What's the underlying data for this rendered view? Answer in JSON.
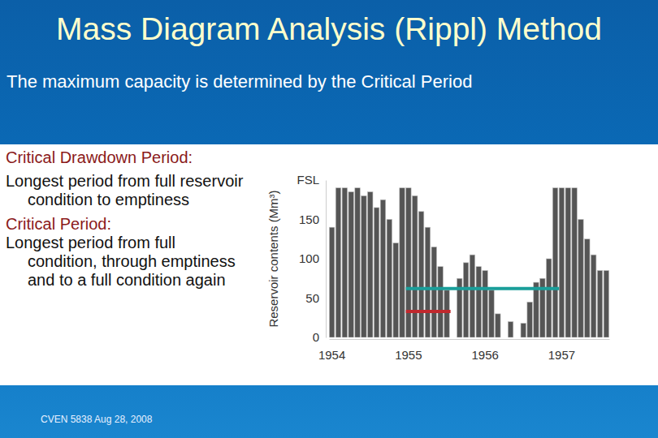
{
  "slide": {
    "title": "Mass Diagram Analysis (Rippl) Method",
    "subtitle": "The maximum capacity is determined by the Critical Period",
    "definitions": [
      {
        "term": "Critical Drawdown Period:",
        "text": "Longest period from full reservoir condition to emptiness"
      },
      {
        "term": "Critical Period:",
        "text": "Longest period from full condition, through emptiness and to a full condition again"
      }
    ],
    "footer": "CVEN 5838 Aug 28, 2008"
  },
  "chart_data": {
    "type": "bar",
    "y_label": "Reservoir contents (Mm³)",
    "categories": [
      "1954",
      null,
      null,
      null,
      null,
      null,
      null,
      null,
      null,
      null,
      null,
      null,
      "1955",
      null,
      null,
      null,
      null,
      null,
      null,
      null,
      null,
      null,
      null,
      null,
      "1956",
      null,
      null,
      null,
      null,
      null,
      null,
      null,
      null,
      null,
      null,
      null,
      "1957",
      null,
      null,
      null,
      null,
      null,
      null,
      null
    ],
    "values": [
      140,
      190,
      190,
      185,
      190,
      180,
      185,
      165,
      175,
      150,
      120,
      190,
      190,
      180,
      160,
      140,
      115,
      90,
      60,
      0,
      75,
      95,
      105,
      90,
      85,
      60,
      30,
      0,
      20,
      0,
      18,
      45,
      70,
      75,
      100,
      190,
      190,
      190,
      190,
      150,
      125,
      105,
      85,
      85
    ],
    "color": "#555555",
    "ylim": [
      0,
      200
    ],
    "yticks": [
      0,
      50,
      100,
      150,
      {
        "value": 200,
        "label": "FSL"
      }
    ],
    "periods": [
      {
        "start": 12,
        "end": 36,
        "level": 62,
        "color": "#1a9e9a"
      },
      {
        "start": 12,
        "end": 19,
        "level": 33,
        "color": "#c0282d"
      }
    ]
  }
}
